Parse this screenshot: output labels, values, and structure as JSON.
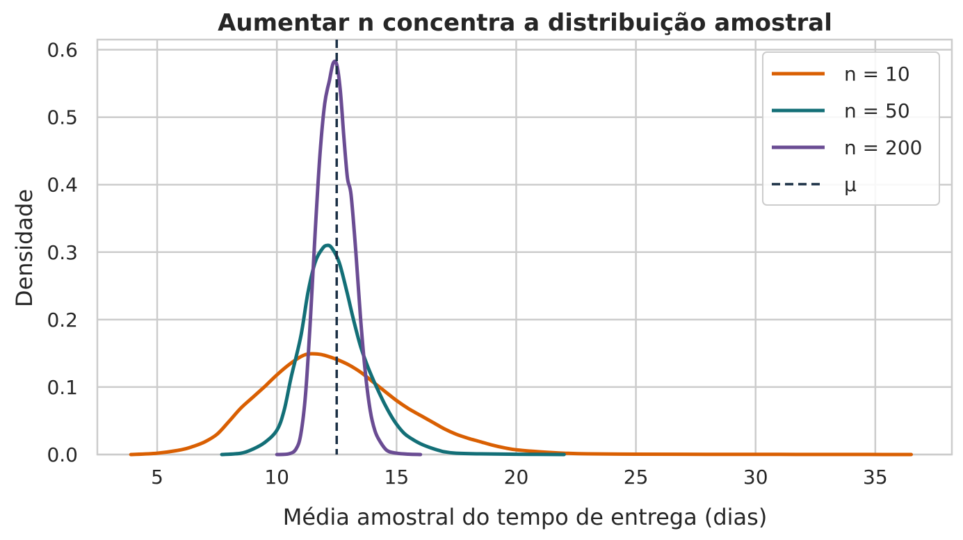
{
  "chart_data": {
    "type": "line",
    "title": "Aumentar n concentra a distribuição amostral",
    "xlabel": "Média amostral do tempo de entrega (dias)",
    "ylabel": "Densidade",
    "xlim": [
      2.5,
      38.2
    ],
    "ylim": [
      0,
      0.615
    ],
    "xticks": [
      5,
      10,
      15,
      20,
      25,
      30,
      35
    ],
    "xtick_labels": [
      "5",
      "10",
      "15",
      "20",
      "25",
      "30",
      "35"
    ],
    "yticks": [
      0.0,
      0.1,
      0.2,
      0.3,
      0.4,
      0.5,
      0.6
    ],
    "ytick_labels": [
      "0.0",
      "0.1",
      "0.2",
      "0.3",
      "0.4",
      "0.5",
      "0.6"
    ],
    "grid": true,
    "legend_position": "top-right",
    "series": [
      {
        "name": "n = 10",
        "color": "#d95f02",
        "x": [
          3.9,
          5,
          6,
          6.5,
          7,
          7.5,
          8,
          8.5,
          9,
          9.5,
          10,
          10.5,
          11,
          11.3,
          11.7,
          12,
          12.5,
          13,
          13.5,
          14,
          14.5,
          15,
          15.5,
          16,
          16.5,
          17,
          17.5,
          18,
          18.5,
          19,
          19.5,
          20,
          21,
          22,
          23,
          25,
          28,
          31,
          34,
          36.5
        ],
        "y": [
          0.0,
          0.002,
          0.007,
          0.012,
          0.019,
          0.03,
          0.049,
          0.069,
          0.085,
          0.101,
          0.118,
          0.133,
          0.145,
          0.149,
          0.149,
          0.147,
          0.141,
          0.133,
          0.122,
          0.108,
          0.094,
          0.08,
          0.068,
          0.058,
          0.048,
          0.038,
          0.03,
          0.024,
          0.019,
          0.014,
          0.01,
          0.007,
          0.004,
          0.002,
          0.001,
          0.0005,
          0.0003,
          0.0002,
          0.0001,
          0.0
        ]
      },
      {
        "name": "n = 50",
        "color": "#136f77",
        "x": [
          7.7,
          8.5,
          9,
          9.5,
          10,
          10.3,
          10.6,
          11,
          11.3,
          11.6,
          11.9,
          12.1,
          12.3,
          12.6,
          12.9,
          13.2,
          13.5,
          13.8,
          14.1,
          14.5,
          14.9,
          15.3,
          15.6,
          16,
          16.5,
          17,
          17.5,
          18.5,
          20,
          22
        ],
        "y": [
          0.0,
          0.002,
          0.008,
          0.018,
          0.036,
          0.065,
          0.115,
          0.175,
          0.24,
          0.285,
          0.305,
          0.31,
          0.306,
          0.285,
          0.245,
          0.2,
          0.16,
          0.13,
          0.105,
          0.075,
          0.05,
          0.032,
          0.024,
          0.016,
          0.009,
          0.004,
          0.002,
          0.001,
          0.0004,
          0.0
        ]
      },
      {
        "name": "n = 200",
        "color": "#6a4c93",
        "x": [
          10,
          10.5,
          10.8,
          11,
          11.2,
          11.4,
          11.6,
          11.8,
          12,
          12.2,
          12.35,
          12.5,
          12.65,
          12.8,
          12.95,
          13.1,
          13.3,
          13.5,
          13.7,
          13.9,
          14.1,
          14.3,
          14.6,
          15,
          15.5,
          16
        ],
        "y": [
          0.0,
          0.001,
          0.008,
          0.03,
          0.09,
          0.2,
          0.33,
          0.445,
          0.52,
          0.555,
          0.58,
          0.578,
          0.54,
          0.47,
          0.41,
          0.385,
          0.3,
          0.2,
          0.12,
          0.065,
          0.035,
          0.02,
          0.006,
          0.002,
          0.0005,
          0.0
        ]
      }
    ],
    "reference_line": {
      "name": "μ",
      "x": 12.5,
      "color": "#1c3146",
      "style": "dashed"
    }
  }
}
